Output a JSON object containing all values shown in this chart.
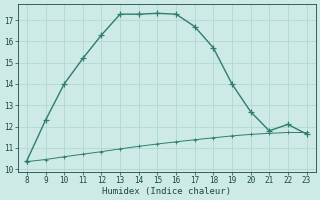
{
  "x": [
    8,
    9,
    10,
    11,
    12,
    13,
    14,
    15,
    16,
    17,
    18,
    19,
    20,
    21,
    22,
    23
  ],
  "y_main": [
    10.4,
    12.3,
    14.0,
    15.2,
    16.3,
    17.28,
    17.28,
    17.32,
    17.28,
    16.7,
    15.7,
    14.0,
    12.7,
    11.8,
    12.1,
    11.65
  ],
  "x_main_skip": [],
  "y_flat": [
    10.35,
    10.45,
    10.58,
    10.7,
    10.82,
    10.95,
    11.07,
    11.18,
    11.28,
    11.38,
    11.47,
    11.56,
    11.63,
    11.68,
    11.72,
    11.72
  ],
  "line_color": "#2e7d6e",
  "bg_color": "#ceeae7",
  "grid_color": "#b2d8d4",
  "xlabel": "Humidex (Indice chaleur)",
  "xlim": [
    7.5,
    23.5
  ],
  "ylim": [
    9.85,
    17.75
  ],
  "xticks": [
    8,
    9,
    10,
    11,
    12,
    13,
    14,
    15,
    16,
    17,
    18,
    19,
    20,
    21,
    22,
    23
  ],
  "yticks": [
    10,
    11,
    12,
    13,
    14,
    15,
    16,
    17
  ],
  "marker": "+",
  "markersize": 4,
  "linewidth": 1.0,
  "font_color": "#1a4a42",
  "tick_fontsize": 5.5,
  "label_fontsize": 6.5
}
